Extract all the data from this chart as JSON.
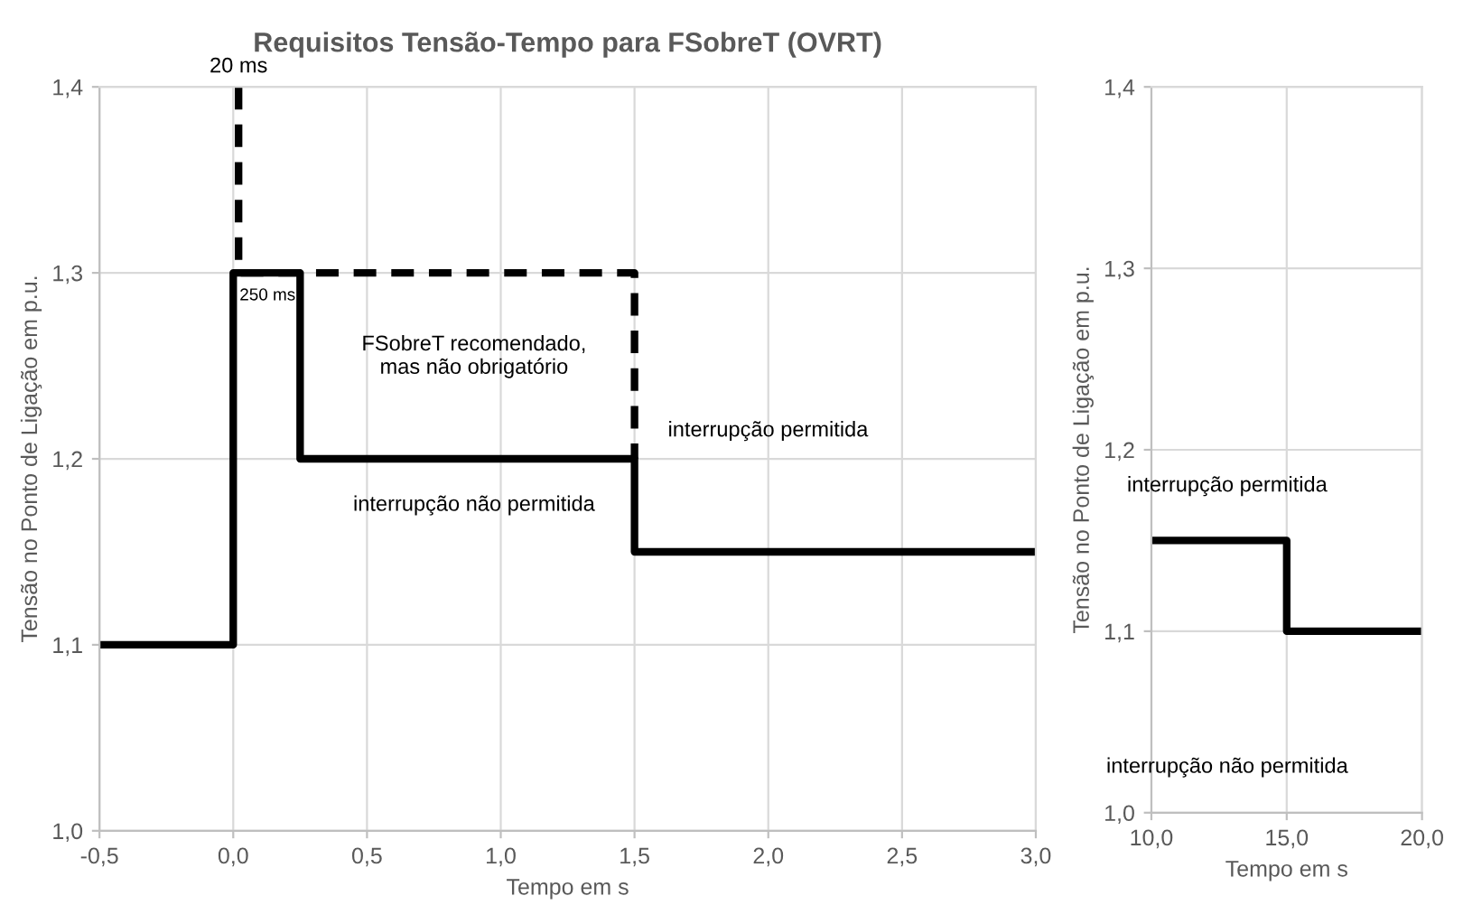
{
  "chart_data": [
    {
      "type": "line",
      "title": "Requisitos Tensão-Tempo para FSobreT (OVRT)",
      "xlabel": "Tempo em s",
      "ylabel": "Tensão no Ponto de Ligação em p.u.",
      "series": [
        {
          "color": "#000000",
          "line_style": "solid",
          "x": [
            -0.5,
            0,
            0,
            0.25,
            0.25,
            1.5,
            1.5,
            3
          ],
          "values": [
            1.1,
            1.1,
            1.3,
            1.3,
            1.2,
            1.2,
            1.15,
            1.15
          ]
        },
        {
          "color": "#000000",
          "line_style": "dashed",
          "x": [
            0.02,
            0.02,
            1.5,
            1.5
          ],
          "values": [
            1.4,
            1.3,
            1.3,
            1.2
          ]
        }
      ],
      "xlim": [
        -0.5,
        3
      ],
      "ylim": [
        1.0,
        1.4
      ],
      "xticks": [
        {
          "value": -0.5,
          "label": "-0,5"
        },
        {
          "value": 0,
          "label": "0,0"
        },
        {
          "value": 0.5,
          "label": "0,5"
        },
        {
          "value": 1,
          "label": "1,0"
        },
        {
          "value": 1.5,
          "label": "1,5"
        },
        {
          "value": 2,
          "label": "2,0"
        },
        {
          "value": 2.5,
          "label": "2,5"
        },
        {
          "value": 3,
          "label": "3,0"
        }
      ],
      "yticks": [
        {
          "value": 1.0,
          "label": "1,0"
        },
        {
          "value": 1.1,
          "label": "1,1"
        },
        {
          "value": 1.2,
          "label": "1,2"
        },
        {
          "value": 1.3,
          "label": "1,3"
        },
        {
          "value": 1.4,
          "label": "1,4"
        }
      ],
      "annotations": [
        {
          "text": "20 ms",
          "x": 0.02,
          "y": 1.4
        },
        {
          "text": "250 ms",
          "x": 0.25,
          "y": 1.3
        },
        "FSobreT recomendado,\nmas não obrigatório",
        "interrupção permitida",
        "interrupção não permitida"
      ],
      "grid": true,
      "legend": false
    },
    {
      "type": "line",
      "xlabel": "Tempo em s",
      "ylabel": "Tensão no Ponto de Ligação em p.u.",
      "series": [
        {
          "color": "#000000",
          "line_style": "solid",
          "x": [
            10,
            15,
            15,
            20
          ],
          "values": [
            1.15,
            1.15,
            1.1,
            1.1
          ]
        }
      ],
      "xlim": [
        10,
        20
      ],
      "ylim": [
        1.0,
        1.4
      ],
      "xticks": [
        {
          "value": 10,
          "label": "10,0"
        },
        {
          "value": 15,
          "label": "15,0"
        },
        {
          "value": 20,
          "label": "20,0"
        }
      ],
      "yticks": [
        {
          "value": 1.0,
          "label": "1,0"
        },
        {
          "value": 1.1,
          "label": "1,1"
        },
        {
          "value": 1.2,
          "label": "1,2"
        },
        {
          "value": 1.3,
          "label": "1,3"
        },
        {
          "value": 1.4,
          "label": "1,4"
        }
      ],
      "annotations": [
        "interrupção permitida",
        "interrupção não permitida"
      ],
      "grid": true,
      "legend": false
    }
  ]
}
